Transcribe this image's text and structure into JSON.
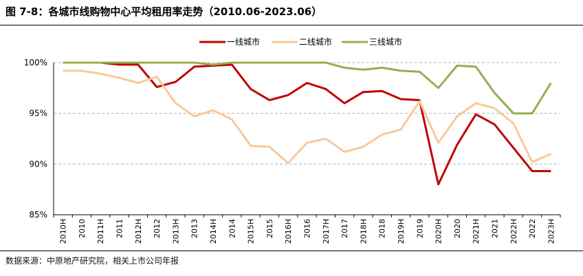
{
  "figure": {
    "title": "图 7-8：各城市线购物中心平均租用率走势（2010.06-2023.06）",
    "source": "数据来源：中原地产研究院，相关上市公司年报"
  },
  "chart_data": {
    "type": "line",
    "title": "各城市线购物中心平均租用率走势（2010.06-2023.06）",
    "xlabel": "",
    "ylabel": "",
    "ylim": [
      85,
      100
    ],
    "yticks": [
      "85%",
      "90%",
      "95%",
      "100%"
    ],
    "ytick_values": [
      85,
      90,
      95,
      100
    ],
    "grid": "horizontal-dashed",
    "legend_position": "top-center",
    "categories": [
      "2010H",
      "2010",
      "2011H",
      "2011",
      "2012H",
      "2012",
      "2013H",
      "2013",
      "2014H",
      "2014",
      "2015H",
      "2015",
      "2016H",
      "2016",
      "2017H",
      "2017",
      "2018H",
      "2018",
      "2019H",
      "2019",
      "2020H",
      "2020",
      "2021H",
      "2021",
      "2022H",
      "2022",
      "2023H"
    ],
    "series": [
      {
        "name": "一线城市",
        "color": "#C00000",
        "values": [
          100,
          100,
          100,
          99.8,
          99.8,
          97.6,
          98.1,
          99.6,
          99.7,
          99.8,
          97.4,
          96.3,
          96.8,
          98.0,
          97.4,
          96.0,
          97.1,
          97.2,
          96.4,
          96.3,
          88.0,
          91.9,
          94.9,
          93.9,
          91.6,
          89.3,
          89.3
        ]
      },
      {
        "name": "二线城市",
        "color": "#F9C89B",
        "values": [
          99.2,
          99.2,
          98.9,
          98.5,
          98.0,
          98.6,
          96.0,
          94.7,
          95.3,
          94.4,
          91.8,
          91.7,
          90.1,
          92.1,
          92.5,
          91.2,
          91.7,
          92.9,
          93.4,
          96.2,
          92.1,
          94.7,
          96.0,
          95.5,
          94.0,
          90.2,
          91.0
        ]
      },
      {
        "name": "三线城市",
        "color": "#92B050",
        "values": [
          100,
          100,
          100,
          100,
          100,
          100,
          100,
          100,
          99.8,
          100,
          100,
          100,
          100,
          100,
          100,
          99.5,
          99.3,
          99.5,
          99.2,
          99.1,
          97.5,
          99.7,
          99.6,
          97.0,
          95.0,
          95.0,
          98.0
        ]
      }
    ]
  }
}
